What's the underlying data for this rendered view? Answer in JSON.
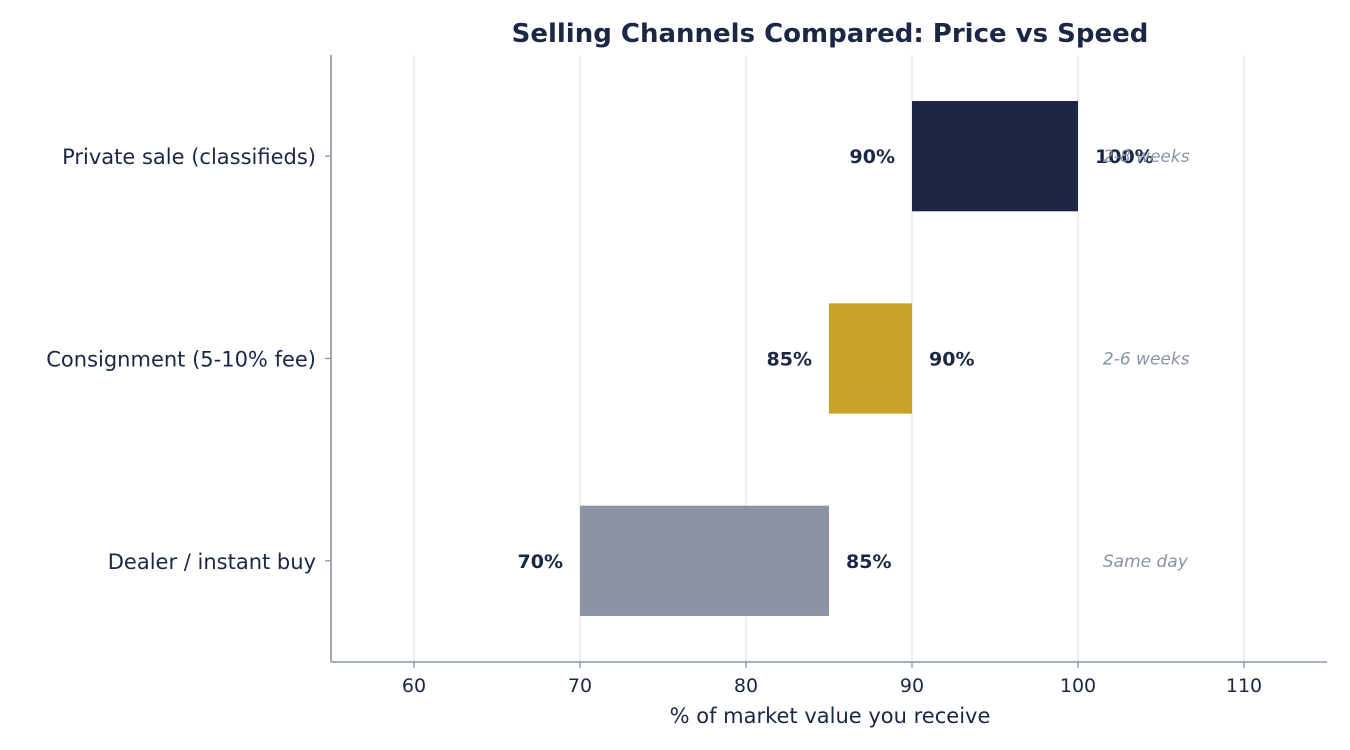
{
  "chart_data": {
    "type": "bar",
    "orientation": "horizontal",
    "chart_kind": "floating range bar",
    "title": "Selling Channels Compared: Price vs Speed",
    "xlabel": "% of market value you receive",
    "ylabel": "",
    "xlim": [
      55,
      115
    ],
    "xticks": [
      60,
      70,
      80,
      90,
      100,
      110
    ],
    "grid": "vertical",
    "legend": "none",
    "categories": [
      "Private sale (classifieds)",
      "Consignment (5-10% fee)",
      "Dealer / instant buy"
    ],
    "ranges": [
      {
        "category": "Private sale (classifieds)",
        "low": 90,
        "high": 100,
        "low_label": "90%",
        "high_label": "100%",
        "time": "2-8 weeks",
        "color": "#1b2744"
      },
      {
        "category": "Consignment (5-10% fee)",
        "low": 85,
        "high": 90,
        "low_label": "85%",
        "high_label": "90%",
        "time": "2-6 weeks",
        "color": "#c9a22a"
      },
      {
        "category": "Dealer / instant buy",
        "low": 70,
        "high": 85,
        "low_label": "70%",
        "high_label": "85%",
        "time": "Same day",
        "color": "#8b93a5"
      }
    ],
    "time_label_x": 101.5,
    "colors": {
      "text": "#1b2744",
      "grid": "#e6e6e6",
      "axis": "#8a93a6",
      "time": "#8a93a6"
    }
  }
}
